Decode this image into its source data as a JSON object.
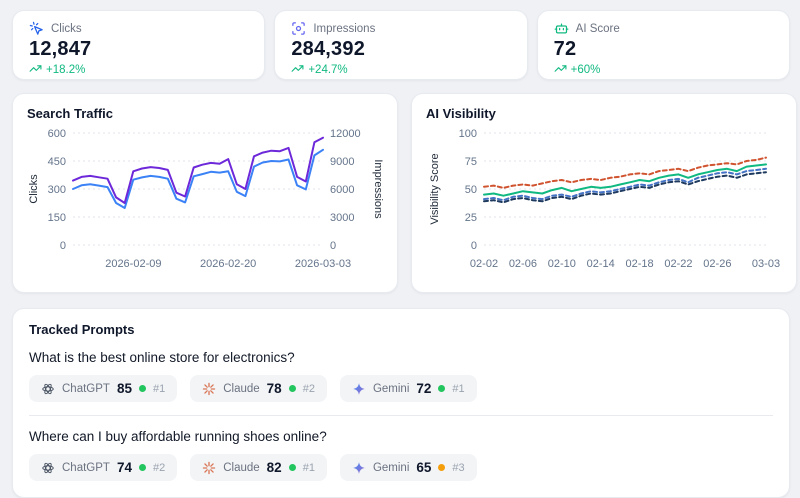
{
  "colors": {
    "positive": "#10b981",
    "page_bg": "#eff1f5",
    "card_bg": "#ffffff"
  },
  "kpis": [
    {
      "label": "Clicks",
      "value": "12,847",
      "delta": "+18.2%",
      "icon": "mouse-pointer-click-icon",
      "icon_color": "#2563eb"
    },
    {
      "label": "Impressions",
      "value": "284,392",
      "delta": "+24.7%",
      "icon": "scan-eye-icon",
      "icon_color": "#6366f1"
    },
    {
      "label": "AI Score",
      "value": "72",
      "delta": "+60%",
      "icon": "bot-icon",
      "icon_color": "#10b981"
    }
  ],
  "chart_data": [
    {
      "type": "line",
      "title": "Search Traffic",
      "ylabel_left": "Clicks",
      "ylabel_right": "Impressions",
      "n_points": 30,
      "x_range": [
        "2026-02-02",
        "2026-03-03"
      ],
      "xticks": [
        {
          "label": "2026-02-09",
          "i": 7
        },
        {
          "label": "2026-02-20",
          "i": 18
        },
        {
          "label": "2026-03-03",
          "i": 29
        }
      ],
      "y_left": {
        "min": 0,
        "max": 600,
        "ticks": [
          0,
          150,
          300,
          450,
          600
        ]
      },
      "y_right": {
        "min": 0,
        "max": 12000,
        "ticks": [
          0,
          3000,
          6000,
          9000,
          12000
        ]
      },
      "grid": true,
      "series": [
        {
          "name": "Clicks",
          "axis": "left",
          "color": "#3b82f6",
          "dashed": false,
          "values": [
            300,
            320,
            325,
            318,
            310,
            225,
            198,
            350,
            362,
            370,
            365,
            355,
            248,
            228,
            368,
            380,
            392,
            388,
            395,
            285,
            262,
            420,
            442,
            450,
            448,
            458,
            320,
            298,
            480,
            510
          ]
        },
        {
          "name": "Impressions",
          "axis": "right",
          "color": "#6d28d9",
          "dashed": false,
          "values": [
            6900,
            7300,
            7400,
            7250,
            7100,
            5100,
            4500,
            7900,
            8200,
            8350,
            8250,
            8050,
            5600,
            5200,
            8300,
            8600,
            8800,
            8700,
            9200,
            6500,
            6000,
            9500,
            9900,
            10100,
            10050,
            10400,
            7300,
            6800,
            11000,
            11500
          ]
        }
      ]
    },
    {
      "type": "line",
      "title": "AI Visibility",
      "ylabel_left": "Visibility Score",
      "n_points": 30,
      "x_range": [
        "02-02",
        "03-03"
      ],
      "xticks": [
        {
          "label": "02-02",
          "i": 0
        },
        {
          "label": "02-06",
          "i": 4
        },
        {
          "label": "02-10",
          "i": 8
        },
        {
          "label": "02-14",
          "i": 12
        },
        {
          "label": "02-18",
          "i": 16
        },
        {
          "label": "02-22",
          "i": 20
        },
        {
          "label": "02-26",
          "i": 24
        },
        {
          "label": "03-03",
          "i": 29
        }
      ],
      "y_left": {
        "min": 0,
        "max": 100,
        "ticks": [
          0,
          25,
          50,
          75,
          100
        ]
      },
      "grid": true,
      "series": [
        {
          "name": "orange-dashed",
          "axis": "left",
          "color": "#d0532f",
          "dashed": true,
          "values": [
            52,
            53,
            51,
            53,
            54,
            53,
            55,
            57,
            58,
            56,
            58,
            59,
            58,
            60,
            61,
            63,
            64,
            63,
            66,
            67,
            68,
            66,
            69,
            71,
            72,
            73,
            72,
            75,
            76,
            78
          ]
        },
        {
          "name": "green-solid",
          "axis": "left",
          "color": "#10b981",
          "dashed": false,
          "values": [
            45,
            46,
            44,
            46,
            48,
            47,
            46,
            49,
            51,
            48,
            50,
            52,
            51,
            52,
            54,
            56,
            58,
            57,
            60,
            62,
            63,
            60,
            63,
            65,
            67,
            68,
            66,
            70,
            71,
            72
          ]
        },
        {
          "name": "blue-dashed",
          "axis": "left",
          "color": "#4472c4",
          "dashed": true,
          "values": [
            41,
            42,
            40,
            43,
            44,
            42,
            41,
            44,
            45,
            43,
            46,
            48,
            47,
            48,
            50,
            52,
            54,
            53,
            56,
            58,
            59,
            56,
            60,
            62,
            64,
            65,
            63,
            66,
            67,
            68
          ]
        },
        {
          "name": "navy-dashed",
          "axis": "left",
          "color": "#1e3a5f",
          "dashed": true,
          "values": [
            39,
            40,
            38,
            41,
            42,
            40,
            39,
            42,
            43,
            41,
            44,
            46,
            45,
            46,
            48,
            50,
            52,
            51,
            54,
            56,
            57,
            54,
            57,
            59,
            61,
            62,
            60,
            63,
            64,
            65
          ]
        }
      ]
    }
  ],
  "prompts": {
    "title": "Tracked Prompts",
    "items": [
      {
        "question": "What is the best online store for electronics?",
        "models": [
          {
            "name": "ChatGPT",
            "score": "85",
            "rank": "#1",
            "dot": "#22c55e"
          },
          {
            "name": "Claude",
            "score": "78",
            "rank": "#2",
            "dot": "#22c55e"
          },
          {
            "name": "Gemini",
            "score": "72",
            "rank": "#1",
            "dot": "#22c55e"
          }
        ]
      },
      {
        "question": "Where can I buy affordable running shoes online?",
        "models": [
          {
            "name": "ChatGPT",
            "score": "74",
            "rank": "#2",
            "dot": "#22c55e"
          },
          {
            "name": "Claude",
            "score": "82",
            "rank": "#1",
            "dot": "#22c55e"
          },
          {
            "name": "Gemini",
            "score": "65",
            "rank": "#3",
            "dot": "#f59e0b"
          }
        ]
      }
    ]
  }
}
